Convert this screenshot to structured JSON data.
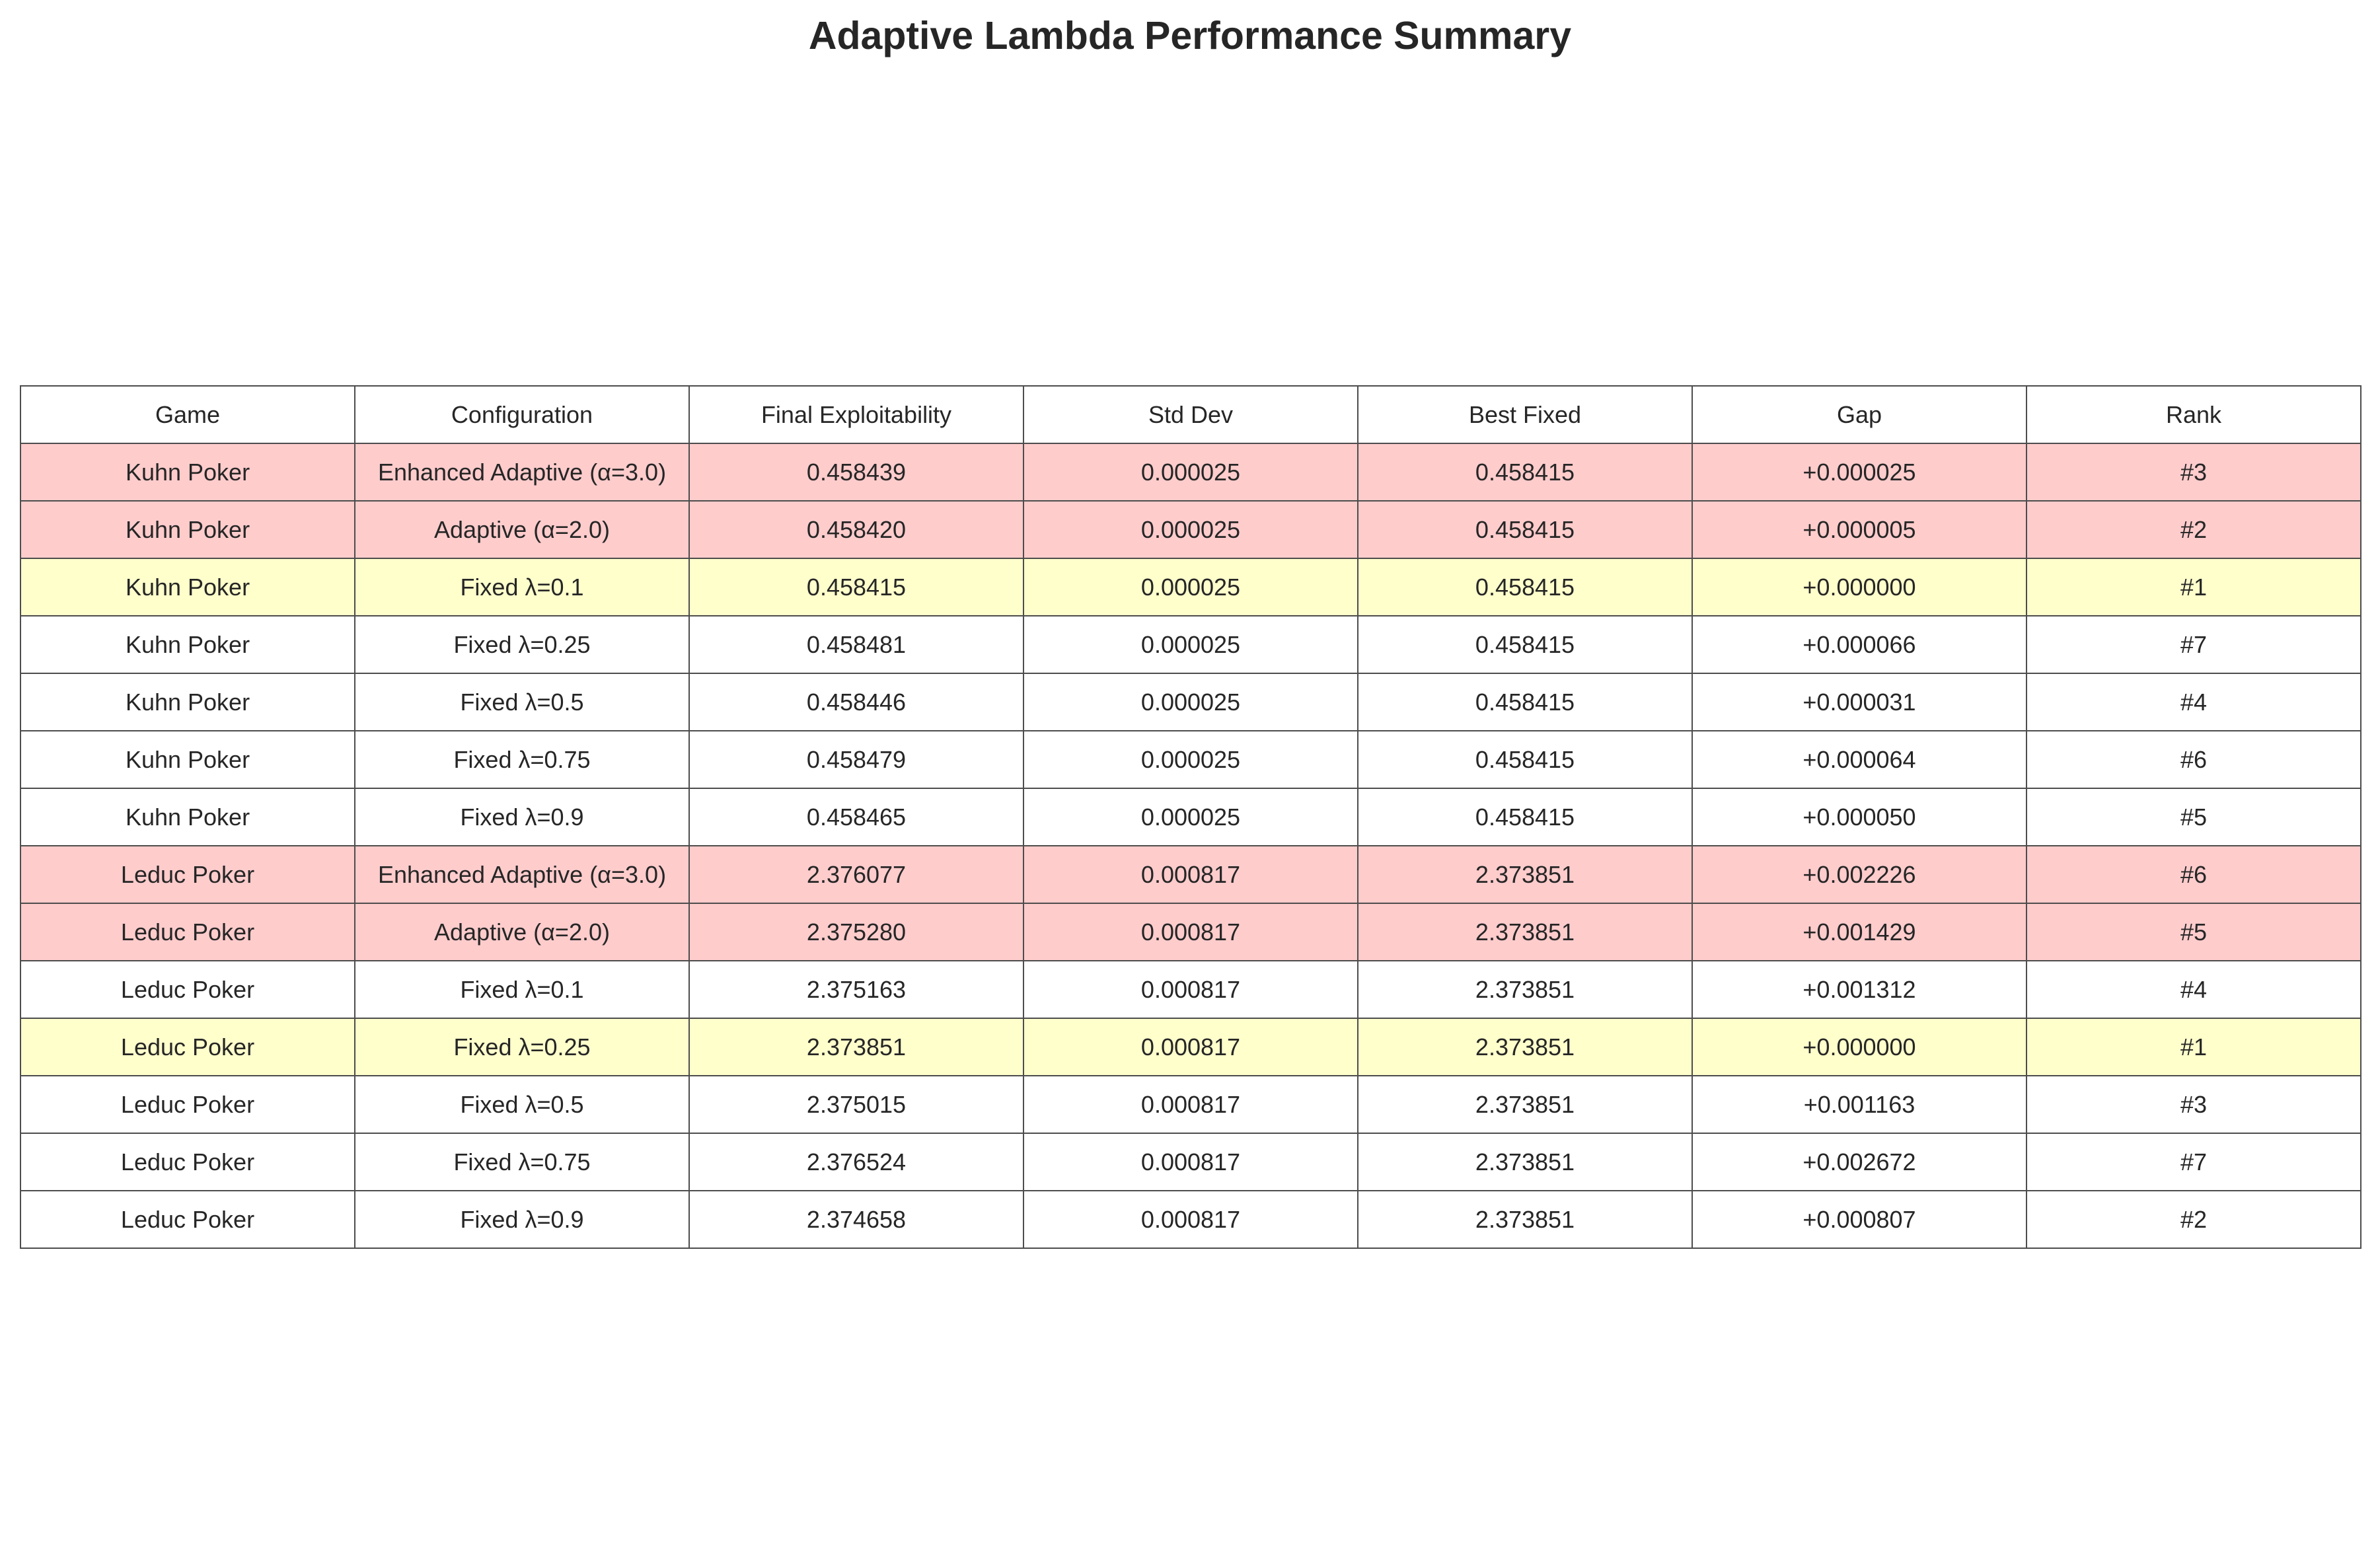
{
  "title": "Adaptive Lambda Performance Summary",
  "chart_data": {
    "type": "table",
    "title": "Adaptive Lambda Performance Summary",
    "columns": [
      "Game",
      "Configuration",
      "Final Exploitability",
      "Std Dev",
      "Best Fixed",
      "Gap",
      "Rank"
    ],
    "rows": [
      {
        "cells": [
          "Kuhn Poker",
          "Enhanced Adaptive (α=3.0)",
          "0.458439",
          "0.000025",
          "0.458415",
          "+0.000025",
          "#3"
        ],
        "highlight": "red"
      },
      {
        "cells": [
          "Kuhn Poker",
          "Adaptive (α=2.0)",
          "0.458420",
          "0.000025",
          "0.458415",
          "+0.000005",
          "#2"
        ],
        "highlight": "red"
      },
      {
        "cells": [
          "Kuhn Poker",
          "Fixed λ=0.1",
          "0.458415",
          "0.000025",
          "0.458415",
          "+0.000000",
          "#1"
        ],
        "highlight": "yellow"
      },
      {
        "cells": [
          "Kuhn Poker",
          "Fixed λ=0.25",
          "0.458481",
          "0.000025",
          "0.458415",
          "+0.000066",
          "#7"
        ],
        "highlight": "white"
      },
      {
        "cells": [
          "Kuhn Poker",
          "Fixed λ=0.5",
          "0.458446",
          "0.000025",
          "0.458415",
          "+0.000031",
          "#4"
        ],
        "highlight": "white"
      },
      {
        "cells": [
          "Kuhn Poker",
          "Fixed λ=0.75",
          "0.458479",
          "0.000025",
          "0.458415",
          "+0.000064",
          "#6"
        ],
        "highlight": "white"
      },
      {
        "cells": [
          "Kuhn Poker",
          "Fixed λ=0.9",
          "0.458465",
          "0.000025",
          "0.458415",
          "+0.000050",
          "#5"
        ],
        "highlight": "white"
      },
      {
        "cells": [
          "Leduc Poker",
          "Enhanced Adaptive (α=3.0)",
          "2.376077",
          "0.000817",
          "2.373851",
          "+0.002226",
          "#6"
        ],
        "highlight": "red"
      },
      {
        "cells": [
          "Leduc Poker",
          "Adaptive (α=2.0)",
          "2.375280",
          "0.000817",
          "2.373851",
          "+0.001429",
          "#5"
        ],
        "highlight": "red"
      },
      {
        "cells": [
          "Leduc Poker",
          "Fixed λ=0.1",
          "2.375163",
          "0.000817",
          "2.373851",
          "+0.001312",
          "#4"
        ],
        "highlight": "white"
      },
      {
        "cells": [
          "Leduc Poker",
          "Fixed λ=0.25",
          "2.373851",
          "0.000817",
          "2.373851",
          "+0.000000",
          "#1"
        ],
        "highlight": "yellow"
      },
      {
        "cells": [
          "Leduc Poker",
          "Fixed λ=0.5",
          "2.375015",
          "0.000817",
          "2.373851",
          "+0.001163",
          "#3"
        ],
        "highlight": "white"
      },
      {
        "cells": [
          "Leduc Poker",
          "Fixed λ=0.75",
          "2.376524",
          "0.000817",
          "2.373851",
          "+0.002672",
          "#7"
        ],
        "highlight": "white"
      },
      {
        "cells": [
          "Leduc Poker",
          "Fixed λ=0.9",
          "2.374658",
          "0.000817",
          "2.373851",
          "+0.000807",
          "#2"
        ],
        "highlight": "white"
      }
    ]
  },
  "colors": {
    "red": "#ffcccc",
    "yellow": "#ffffcc",
    "white": "#ffffff",
    "border": "#4d4d4d",
    "text": "#262626"
  }
}
